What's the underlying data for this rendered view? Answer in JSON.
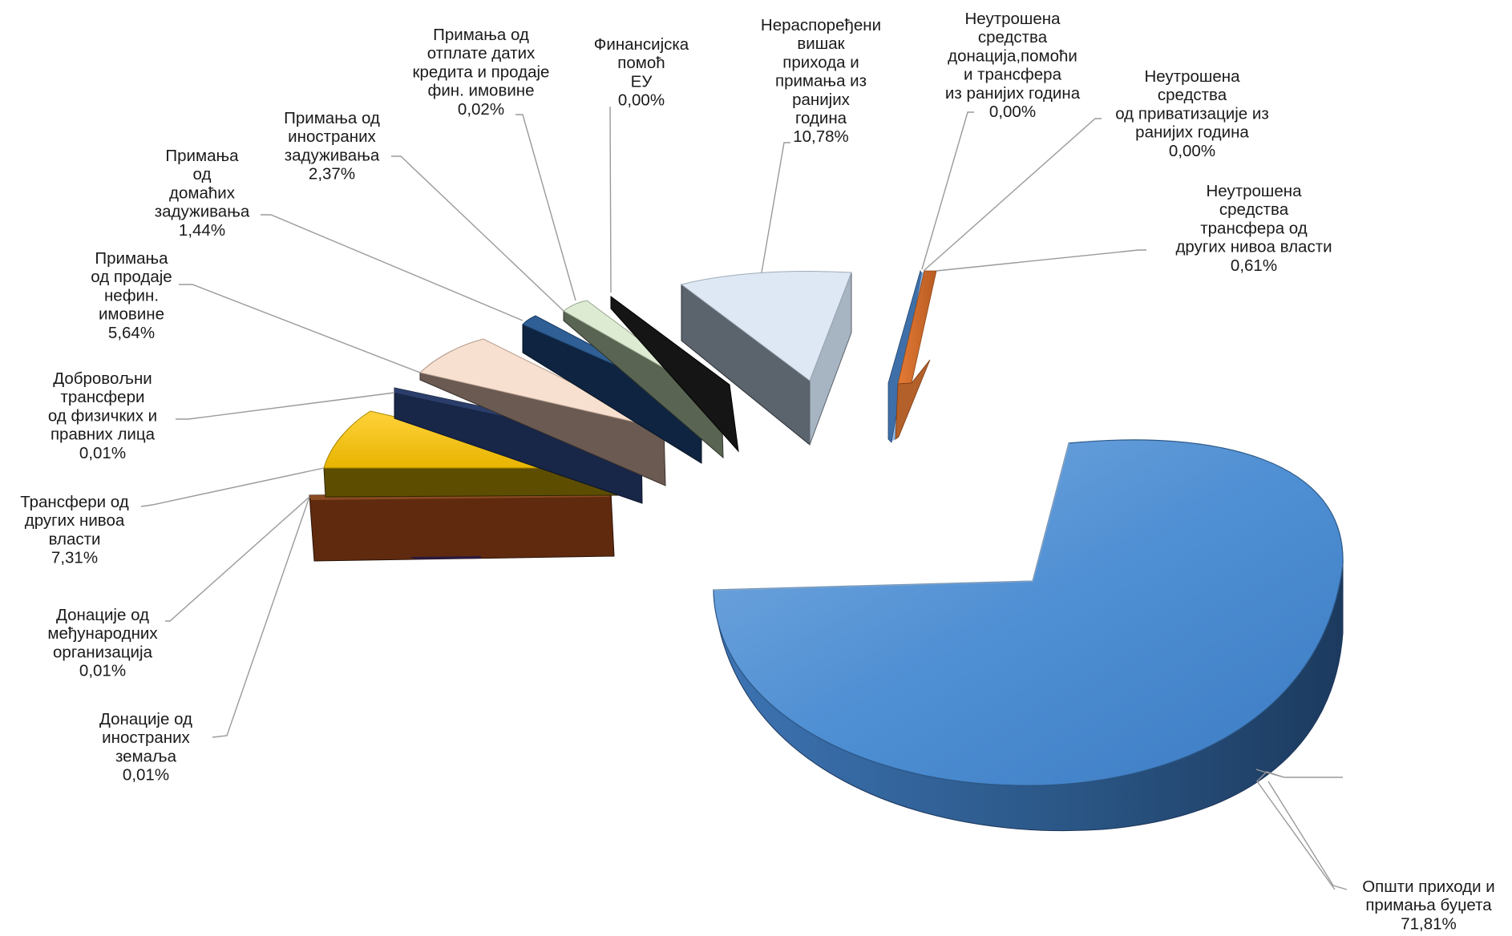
{
  "chart_data": {
    "type": "pie",
    "style": "3d-exploded",
    "title": "",
    "legend": "none",
    "slices": [
      {
        "label": "Општи приходи и примања буџета",
        "value": 71.81,
        "value_label": "71,81%",
        "top_color": "#4f8ed1",
        "side_color": "#2d5988"
      },
      {
        "label": "Донације од иностраних земаља",
        "value": 0.01,
        "value_label": "0,01%",
        "top_color": "#6e3515",
        "side_color": "#5a2a10"
      },
      {
        "label": "Донације од међународних организација",
        "value": 0.01,
        "value_label": "0,01%",
        "top_color": "#7a3d16",
        "side_color": "#5f2e0f"
      },
      {
        "label": "Трансфери од других нивоа власти",
        "value": 7.31,
        "value_label": "7,31%",
        "top_color": "#f3c200",
        "side_color": "#5d4d00"
      },
      {
        "label": "Добровољни трансфери од физичких и правних лица",
        "value": 0.01,
        "value_label": "0,01%",
        "top_color": "#23345e",
        "side_color": "#182647"
      },
      {
        "label": "Примања од продаје нефин. имовине",
        "value": 5.64,
        "value_label": "5,64%",
        "top_color": "#f6dfcf",
        "side_color": "#6a5a52"
      },
      {
        "label": "Примања од домаћих задуживања",
        "value": 1.44,
        "value_label": "1,44%",
        "top_color": "#2b5a8c",
        "side_color": "#0f2440"
      },
      {
        "label": "Примања од иностраних задуживања",
        "value": 2.37,
        "value_label": "2,37%",
        "top_color": "#dcebd2",
        "side_color": "#596452"
      },
      {
        "label": "Примања од отплате датих кредита и продаје фин. имовине",
        "value": 0.02,
        "value_label": "0,02%",
        "top_color": "#333333",
        "side_color": "#111111"
      },
      {
        "label": "Финансијска помоћ ЕУ",
        "value": 0.0,
        "value_label": "0,00%",
        "top_color": "#2a2a2a",
        "side_color": "#151515"
      },
      {
        "label": "Нераспоређени вишак прихода и примања из ранијих година",
        "value": 10.78,
        "value_label": "10,78%",
        "top_color": "#dde8f4",
        "side_color": "#5b636d"
      },
      {
        "label": "Неутрошена средства донација,помоћи и трансфера из ранијих година",
        "value": 0.0,
        "value_label": "0,00%",
        "top_color": "#4f86c6",
        "side_color": "#2d5a8c"
      },
      {
        "label": "Неутрошена средства од приватизације из ранијих година",
        "value": 0.0,
        "value_label": "0,00%",
        "top_color": "#6d9bd0",
        "side_color": "#3c6a9d"
      },
      {
        "label": "Неутрошена средства трансфера од других нивоа власти",
        "value": 0.61,
        "value_label": "0,61%",
        "top_color": "#ee8f4c",
        "side_color": "#b4602a"
      }
    ]
  }
}
